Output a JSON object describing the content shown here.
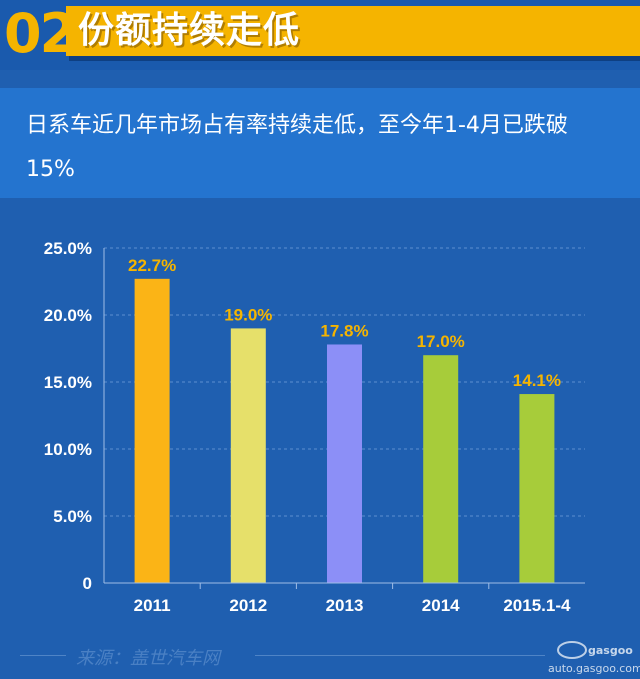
{
  "header": {
    "number": "02",
    "title": "份额持续走低"
  },
  "description": "日系车近几年市场占有率持续走低，至今年1-4月已跌破15%",
  "chart_data": {
    "type": "bar",
    "categories": [
      "2011",
      "2012",
      "2013",
      "2014",
      "2015.1-4"
    ],
    "values": [
      22.7,
      19.0,
      17.8,
      17.0,
      14.1
    ],
    "data_labels": [
      "22.7%",
      "19.0%",
      "17.8%",
      "17.0%",
      "14.1%"
    ],
    "colors": [
      "#fbb416",
      "#e6e06a",
      "#8c8ff7",
      "#a7cc3a",
      "#a7cc3a"
    ],
    "label_color": "#f5b400",
    "ylim": [
      0,
      25
    ],
    "yticks": [
      0,
      5,
      10,
      15,
      20,
      25
    ],
    "ytick_labels": [
      "0",
      "5.0%",
      "10.0%",
      "15.0%",
      "20.0%",
      "25.0%"
    ],
    "grid": true,
    "title": "",
    "xlabel": "",
    "ylabel": ""
  },
  "footer": {
    "source": "来源：盖世汽车网",
    "watermark": "auto.gasgoo.com"
  }
}
